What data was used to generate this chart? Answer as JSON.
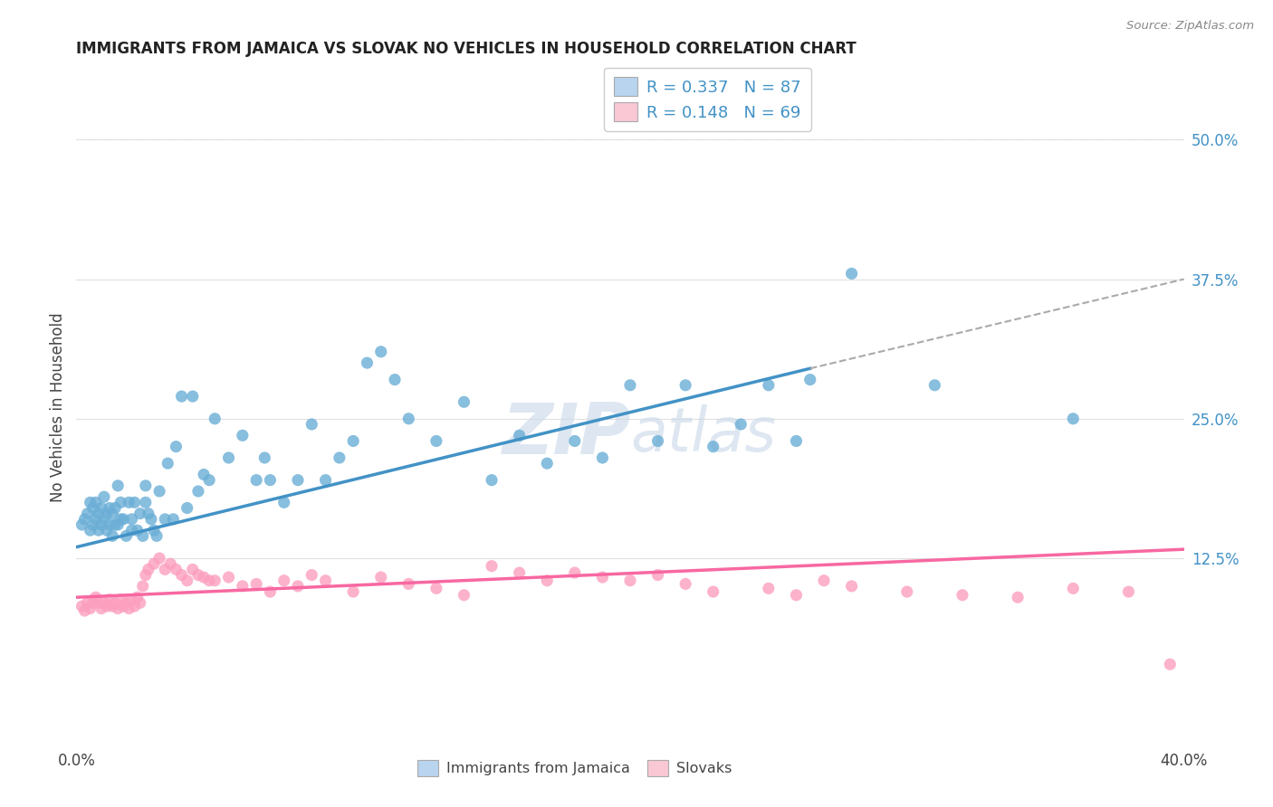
{
  "title": "IMMIGRANTS FROM JAMAICA VS SLOVAK NO VEHICLES IN HOUSEHOLD CORRELATION CHART",
  "source": "Source: ZipAtlas.com",
  "ylabel": "No Vehicles in Household",
  "right_yticks": [
    "50.0%",
    "37.5%",
    "25.0%",
    "12.5%"
  ],
  "right_ytick_vals": [
    0.5,
    0.375,
    0.25,
    0.125
  ],
  "xlim": [
    0.0,
    0.4
  ],
  "ylim": [
    -0.04,
    0.56
  ],
  "jamaica_R": "0.337",
  "jamaica_N": "87",
  "slovak_R": "0.148",
  "slovak_N": "69",
  "jamaica_color": "#6baed6",
  "slovak_color": "#fc9fbf",
  "jamaica_line_color": "#4292c6",
  "slovak_line_color": "#f768a1",
  "jamaica_trend_start_x": 0.0,
  "jamaica_trend_start_y": 0.135,
  "jamaica_trend_end_x": 0.265,
  "jamaica_trend_end_y": 0.295,
  "slovak_trend_start_x": 0.0,
  "slovak_trend_start_y": 0.09,
  "slovak_trend_end_x": 0.4,
  "slovak_trend_end_y": 0.133,
  "dashed_line_start_x": 0.265,
  "dashed_line_start_y": 0.295,
  "dashed_line_end_x": 0.4,
  "dashed_line_end_y": 0.375,
  "jamaica_x": [
    0.002,
    0.003,
    0.004,
    0.005,
    0.005,
    0.006,
    0.006,
    0.007,
    0.007,
    0.008,
    0.008,
    0.009,
    0.009,
    0.01,
    0.01,
    0.011,
    0.011,
    0.012,
    0.012,
    0.013,
    0.013,
    0.014,
    0.014,
    0.015,
    0.015,
    0.016,
    0.016,
    0.017,
    0.018,
    0.019,
    0.02,
    0.02,
    0.021,
    0.022,
    0.023,
    0.024,
    0.025,
    0.025,
    0.026,
    0.027,
    0.028,
    0.029,
    0.03,
    0.032,
    0.033,
    0.035,
    0.036,
    0.038,
    0.04,
    0.042,
    0.044,
    0.046,
    0.048,
    0.05,
    0.055,
    0.06,
    0.065,
    0.068,
    0.07,
    0.075,
    0.08,
    0.085,
    0.09,
    0.095,
    0.1,
    0.105,
    0.11,
    0.115,
    0.12,
    0.13,
    0.14,
    0.15,
    0.16,
    0.17,
    0.18,
    0.19,
    0.2,
    0.21,
    0.22,
    0.23,
    0.24,
    0.25,
    0.26,
    0.265,
    0.28,
    0.31,
    0.36
  ],
  "jamaica_y": [
    0.155,
    0.16,
    0.165,
    0.15,
    0.175,
    0.155,
    0.17,
    0.16,
    0.175,
    0.15,
    0.165,
    0.155,
    0.17,
    0.16,
    0.18,
    0.15,
    0.165,
    0.155,
    0.17,
    0.145,
    0.165,
    0.155,
    0.17,
    0.19,
    0.155,
    0.16,
    0.175,
    0.16,
    0.145,
    0.175,
    0.15,
    0.16,
    0.175,
    0.15,
    0.165,
    0.145,
    0.175,
    0.19,
    0.165,
    0.16,
    0.15,
    0.145,
    0.185,
    0.16,
    0.21,
    0.16,
    0.225,
    0.27,
    0.17,
    0.27,
    0.185,
    0.2,
    0.195,
    0.25,
    0.215,
    0.235,
    0.195,
    0.215,
    0.195,
    0.175,
    0.195,
    0.245,
    0.195,
    0.215,
    0.23,
    0.3,
    0.31,
    0.285,
    0.25,
    0.23,
    0.265,
    0.195,
    0.235,
    0.21,
    0.23,
    0.215,
    0.28,
    0.23,
    0.28,
    0.225,
    0.245,
    0.28,
    0.23,
    0.285,
    0.38,
    0.28,
    0.25
  ],
  "slovak_x": [
    0.002,
    0.003,
    0.004,
    0.005,
    0.006,
    0.007,
    0.008,
    0.009,
    0.01,
    0.011,
    0.012,
    0.013,
    0.014,
    0.015,
    0.016,
    0.017,
    0.018,
    0.019,
    0.02,
    0.021,
    0.022,
    0.023,
    0.024,
    0.025,
    0.026,
    0.028,
    0.03,
    0.032,
    0.034,
    0.036,
    0.038,
    0.04,
    0.042,
    0.044,
    0.046,
    0.048,
    0.05,
    0.055,
    0.06,
    0.065,
    0.07,
    0.075,
    0.08,
    0.085,
    0.09,
    0.1,
    0.11,
    0.12,
    0.13,
    0.14,
    0.15,
    0.16,
    0.17,
    0.18,
    0.19,
    0.2,
    0.21,
    0.22,
    0.23,
    0.25,
    0.26,
    0.27,
    0.28,
    0.3,
    0.32,
    0.34,
    0.36,
    0.38,
    0.395
  ],
  "slovak_y": [
    0.082,
    0.078,
    0.085,
    0.08,
    0.085,
    0.09,
    0.085,
    0.08,
    0.085,
    0.082,
    0.088,
    0.082,
    0.085,
    0.08,
    0.088,
    0.082,
    0.085,
    0.08,
    0.088,
    0.082,
    0.09,
    0.085,
    0.1,
    0.11,
    0.115,
    0.12,
    0.125,
    0.115,
    0.12,
    0.115,
    0.11,
    0.105,
    0.115,
    0.11,
    0.108,
    0.105,
    0.105,
    0.108,
    0.1,
    0.102,
    0.095,
    0.105,
    0.1,
    0.11,
    0.105,
    0.095,
    0.108,
    0.102,
    0.098,
    0.092,
    0.118,
    0.112,
    0.105,
    0.112,
    0.108,
    0.105,
    0.11,
    0.102,
    0.095,
    0.098,
    0.092,
    0.105,
    0.1,
    0.095,
    0.092,
    0.09,
    0.098,
    0.095,
    0.03
  ],
  "background_color": "#ffffff",
  "grid_color": "#e0e0e0",
  "watermark_color": "#c8d8e8",
  "legend_jamaica_color": "#b8d4ee",
  "legend_slovak_color": "#f9c8d4",
  "text_color_blue": "#4292c6"
}
